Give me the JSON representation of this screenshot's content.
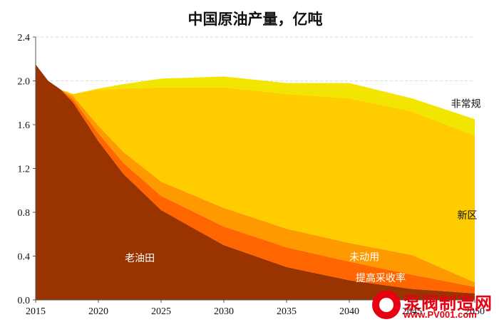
{
  "chart_data": {
    "type": "area",
    "stacked": true,
    "title": "中国原油产量，亿吨",
    "xlabel": "",
    "ylabel": "",
    "xlim": [
      2015,
      2050
    ],
    "ylim": [
      0,
      2.4
    ],
    "x_ticks": [
      "2015",
      "2020",
      "2025",
      "2030",
      "2035",
      "2040",
      "2045",
      "2050"
    ],
    "y_ticks": [
      "0.0",
      "0.4",
      "0.8",
      "1.2",
      "1.6",
      "2.0",
      "2.4"
    ],
    "grid": "horizontal-dashed",
    "x": [
      2015,
      2016,
      2017,
      2018,
      2020,
      2022,
      2025,
      2030,
      2035,
      2040,
      2045,
      2050
    ],
    "series": [
      {
        "name": "老油田",
        "color": "#993300",
        "values": [
          2.15,
          2.0,
          1.92,
          1.8,
          1.45,
          1.15,
          0.82,
          0.5,
          0.3,
          0.18,
          0.1,
          0.06
        ]
      },
      {
        "name": "提高采收率",
        "color": "#ff6600",
        "values": [
          0.0,
          0.0,
          0.0,
          0.03,
          0.07,
          0.1,
          0.13,
          0.17,
          0.18,
          0.17,
          0.13,
          0.06
        ]
      },
      {
        "name": "未动用",
        "color": "#ff9900",
        "values": [
          0.0,
          0.0,
          0.0,
          0.03,
          0.07,
          0.1,
          0.13,
          0.17,
          0.17,
          0.17,
          0.18,
          0.04
        ]
      },
      {
        "name": "新区",
        "color": "#ffcc00",
        "values": [
          0.0,
          0.0,
          0.0,
          0.02,
          0.33,
          0.58,
          0.86,
          1.1,
          1.23,
          1.32,
          1.31,
          1.34
        ]
      },
      {
        "name": "非常规",
        "color": "#f2e600",
        "values": [
          0.0,
          0.0,
          0.0,
          0.0,
          0.01,
          0.04,
          0.08,
          0.1,
          0.1,
          0.14,
          0.12,
          0.15
        ]
      }
    ]
  },
  "watermark": {
    "name": "泵阀制造网",
    "url": "www.PV001.com",
    "color": "#e60012"
  }
}
